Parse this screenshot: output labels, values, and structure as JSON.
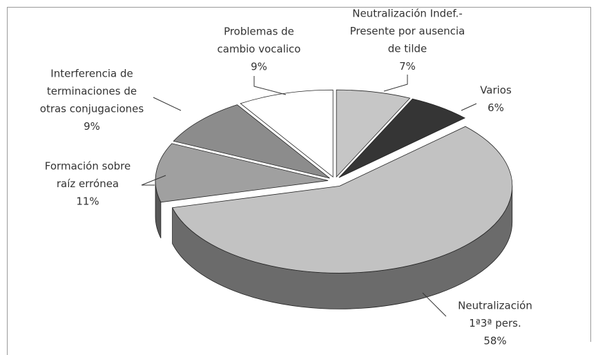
{
  "chart_data": {
    "type": "pie3d",
    "categories": [
      [
        "Neutralización Indef.-",
        "Presente por ausencia",
        "de tilde"
      ],
      [
        "Varios"
      ],
      [
        "Neutralización",
        "1ª3ª pers."
      ],
      [
        "Formación sobre",
        "raíz errónea"
      ],
      [
        "Interferencia de",
        "terminaciones de",
        "otras conjugaciones"
      ],
      [
        "Problemas de",
        "cambio vocalico"
      ]
    ],
    "values": [
      7,
      6,
      58,
      11,
      9,
      9
    ],
    "value_labels": [
      "7%",
      "6%",
      "58%",
      "11%",
      "9%",
      "9%"
    ],
    "colors": [
      "#c6c6c6",
      "#353535",
      "#c2c2c2",
      "#a0a0a0",
      "#8c8c8c",
      "#ffffff"
    ]
  }
}
